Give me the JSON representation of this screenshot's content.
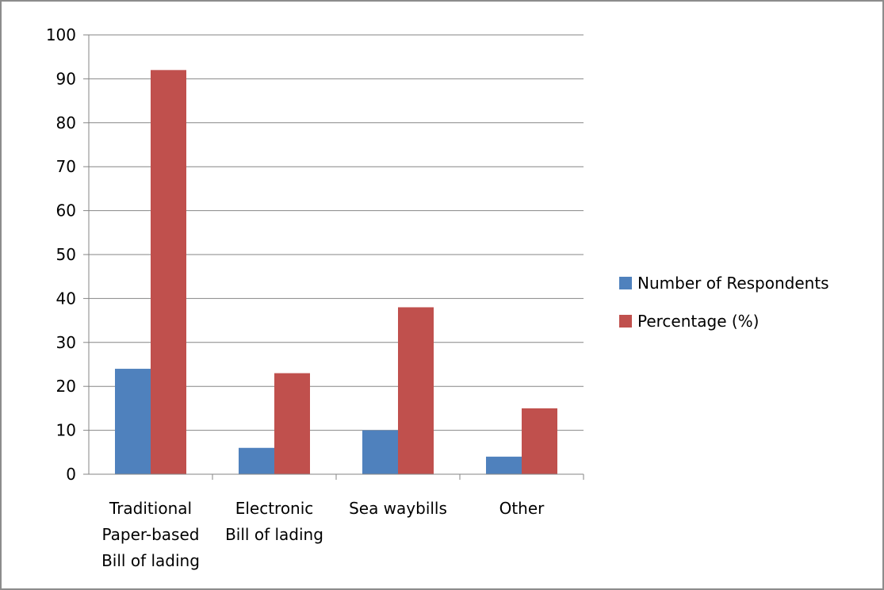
{
  "colors": {
    "series_1": "#4f81bd",
    "series_2": "#c0504d",
    "gridline": "#868686",
    "axis": "#868686",
    "border": "#8c8c8c"
  },
  "chart_data": {
    "type": "bar",
    "categories": [
      [
        "Traditional",
        "Paper-based",
        "Bill of lading"
      ],
      [
        "Electronic",
        "Bill of lading"
      ],
      [
        "Sea waybills"
      ],
      [
        "Other"
      ]
    ],
    "series": [
      {
        "name": "Number of Respondents",
        "values": [
          24,
          6,
          10,
          4
        ]
      },
      {
        "name": "Percentage (%)",
        "values": [
          92,
          23,
          38,
          15
        ]
      }
    ],
    "title": "",
    "xlabel": "",
    "ylabel": "",
    "ylim": [
      0,
      100
    ],
    "yticks": [
      0,
      10,
      20,
      30,
      40,
      50,
      60,
      70,
      80,
      90,
      100
    ],
    "grid": true,
    "legend": "right"
  }
}
